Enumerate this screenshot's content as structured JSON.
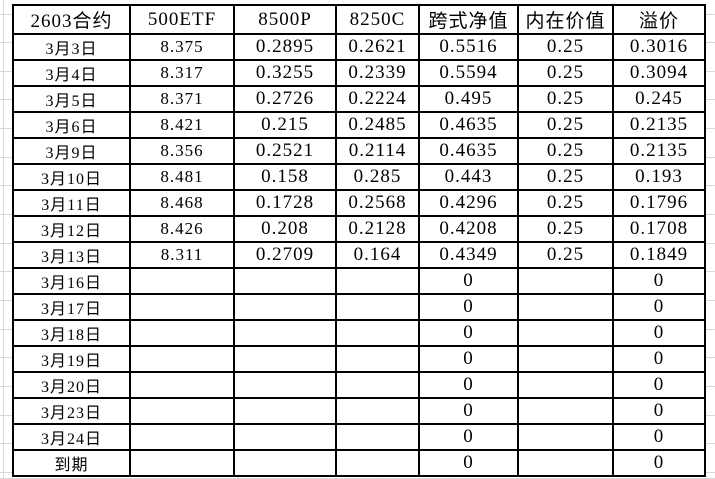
{
  "sheet": {
    "title_cell": "2603合约",
    "header": [
      "2603合约",
      "500ETF",
      "8500P",
      "8250C",
      "跨式净值",
      "内在价值",
      "溢价"
    ],
    "rows": [
      [
        "3月3日",
        "8.375",
        "0.2895",
        "0.2621",
        "0.5516",
        "0.25",
        "0.3016"
      ],
      [
        "3月4日",
        "8.317",
        "0.3255",
        "0.2339",
        "0.5594",
        "0.25",
        "0.3094"
      ],
      [
        "3月5日",
        "8.371",
        "0.2726",
        "0.2224",
        "0.495",
        "0.25",
        "0.245"
      ],
      [
        "3月6日",
        "8.421",
        "0.215",
        "0.2485",
        "0.4635",
        "0.25",
        "0.2135"
      ],
      [
        "3月9日",
        "8.356",
        "0.2521",
        "0.2114",
        "0.4635",
        "0.25",
        "0.2135"
      ],
      [
        "3月10日",
        "8.481",
        "0.158",
        "0.285",
        "0.443",
        "0.25",
        "0.193"
      ],
      [
        "3月11日",
        "8.468",
        "0.1728",
        "0.2568",
        "0.4296",
        "0.25",
        "0.1796"
      ],
      [
        "3月12日",
        "8.426",
        "0.208",
        "0.2128",
        "0.4208",
        "0.25",
        "0.1708"
      ],
      [
        "3月13日",
        "8.311",
        "0.2709",
        "0.164",
        "0.4349",
        "0.25",
        "0.1849"
      ],
      [
        "3月16日",
        "",
        "",
        "",
        "0",
        "",
        "0"
      ],
      [
        "3月17日",
        "",
        "",
        "",
        "0",
        "",
        "0"
      ],
      [
        "3月18日",
        "",
        "",
        "",
        "0",
        "",
        "0"
      ],
      [
        "3月19日",
        "",
        "",
        "",
        "0",
        "",
        "0"
      ],
      [
        "3月20日",
        "",
        "",
        "",
        "0",
        "",
        "0"
      ],
      [
        "3月23日",
        "",
        "",
        "",
        "0",
        "",
        "0"
      ],
      [
        "3月24日",
        "",
        "",
        "",
        "0",
        "",
        "0"
      ],
      [
        "到期",
        "",
        "",
        "",
        "0",
        "",
        "0"
      ]
    ]
  },
  "colors": {
    "background": "#ffffff",
    "text": "#000000",
    "table_border": "#000000",
    "faint_grid_line": "#d9d9d9"
  }
}
